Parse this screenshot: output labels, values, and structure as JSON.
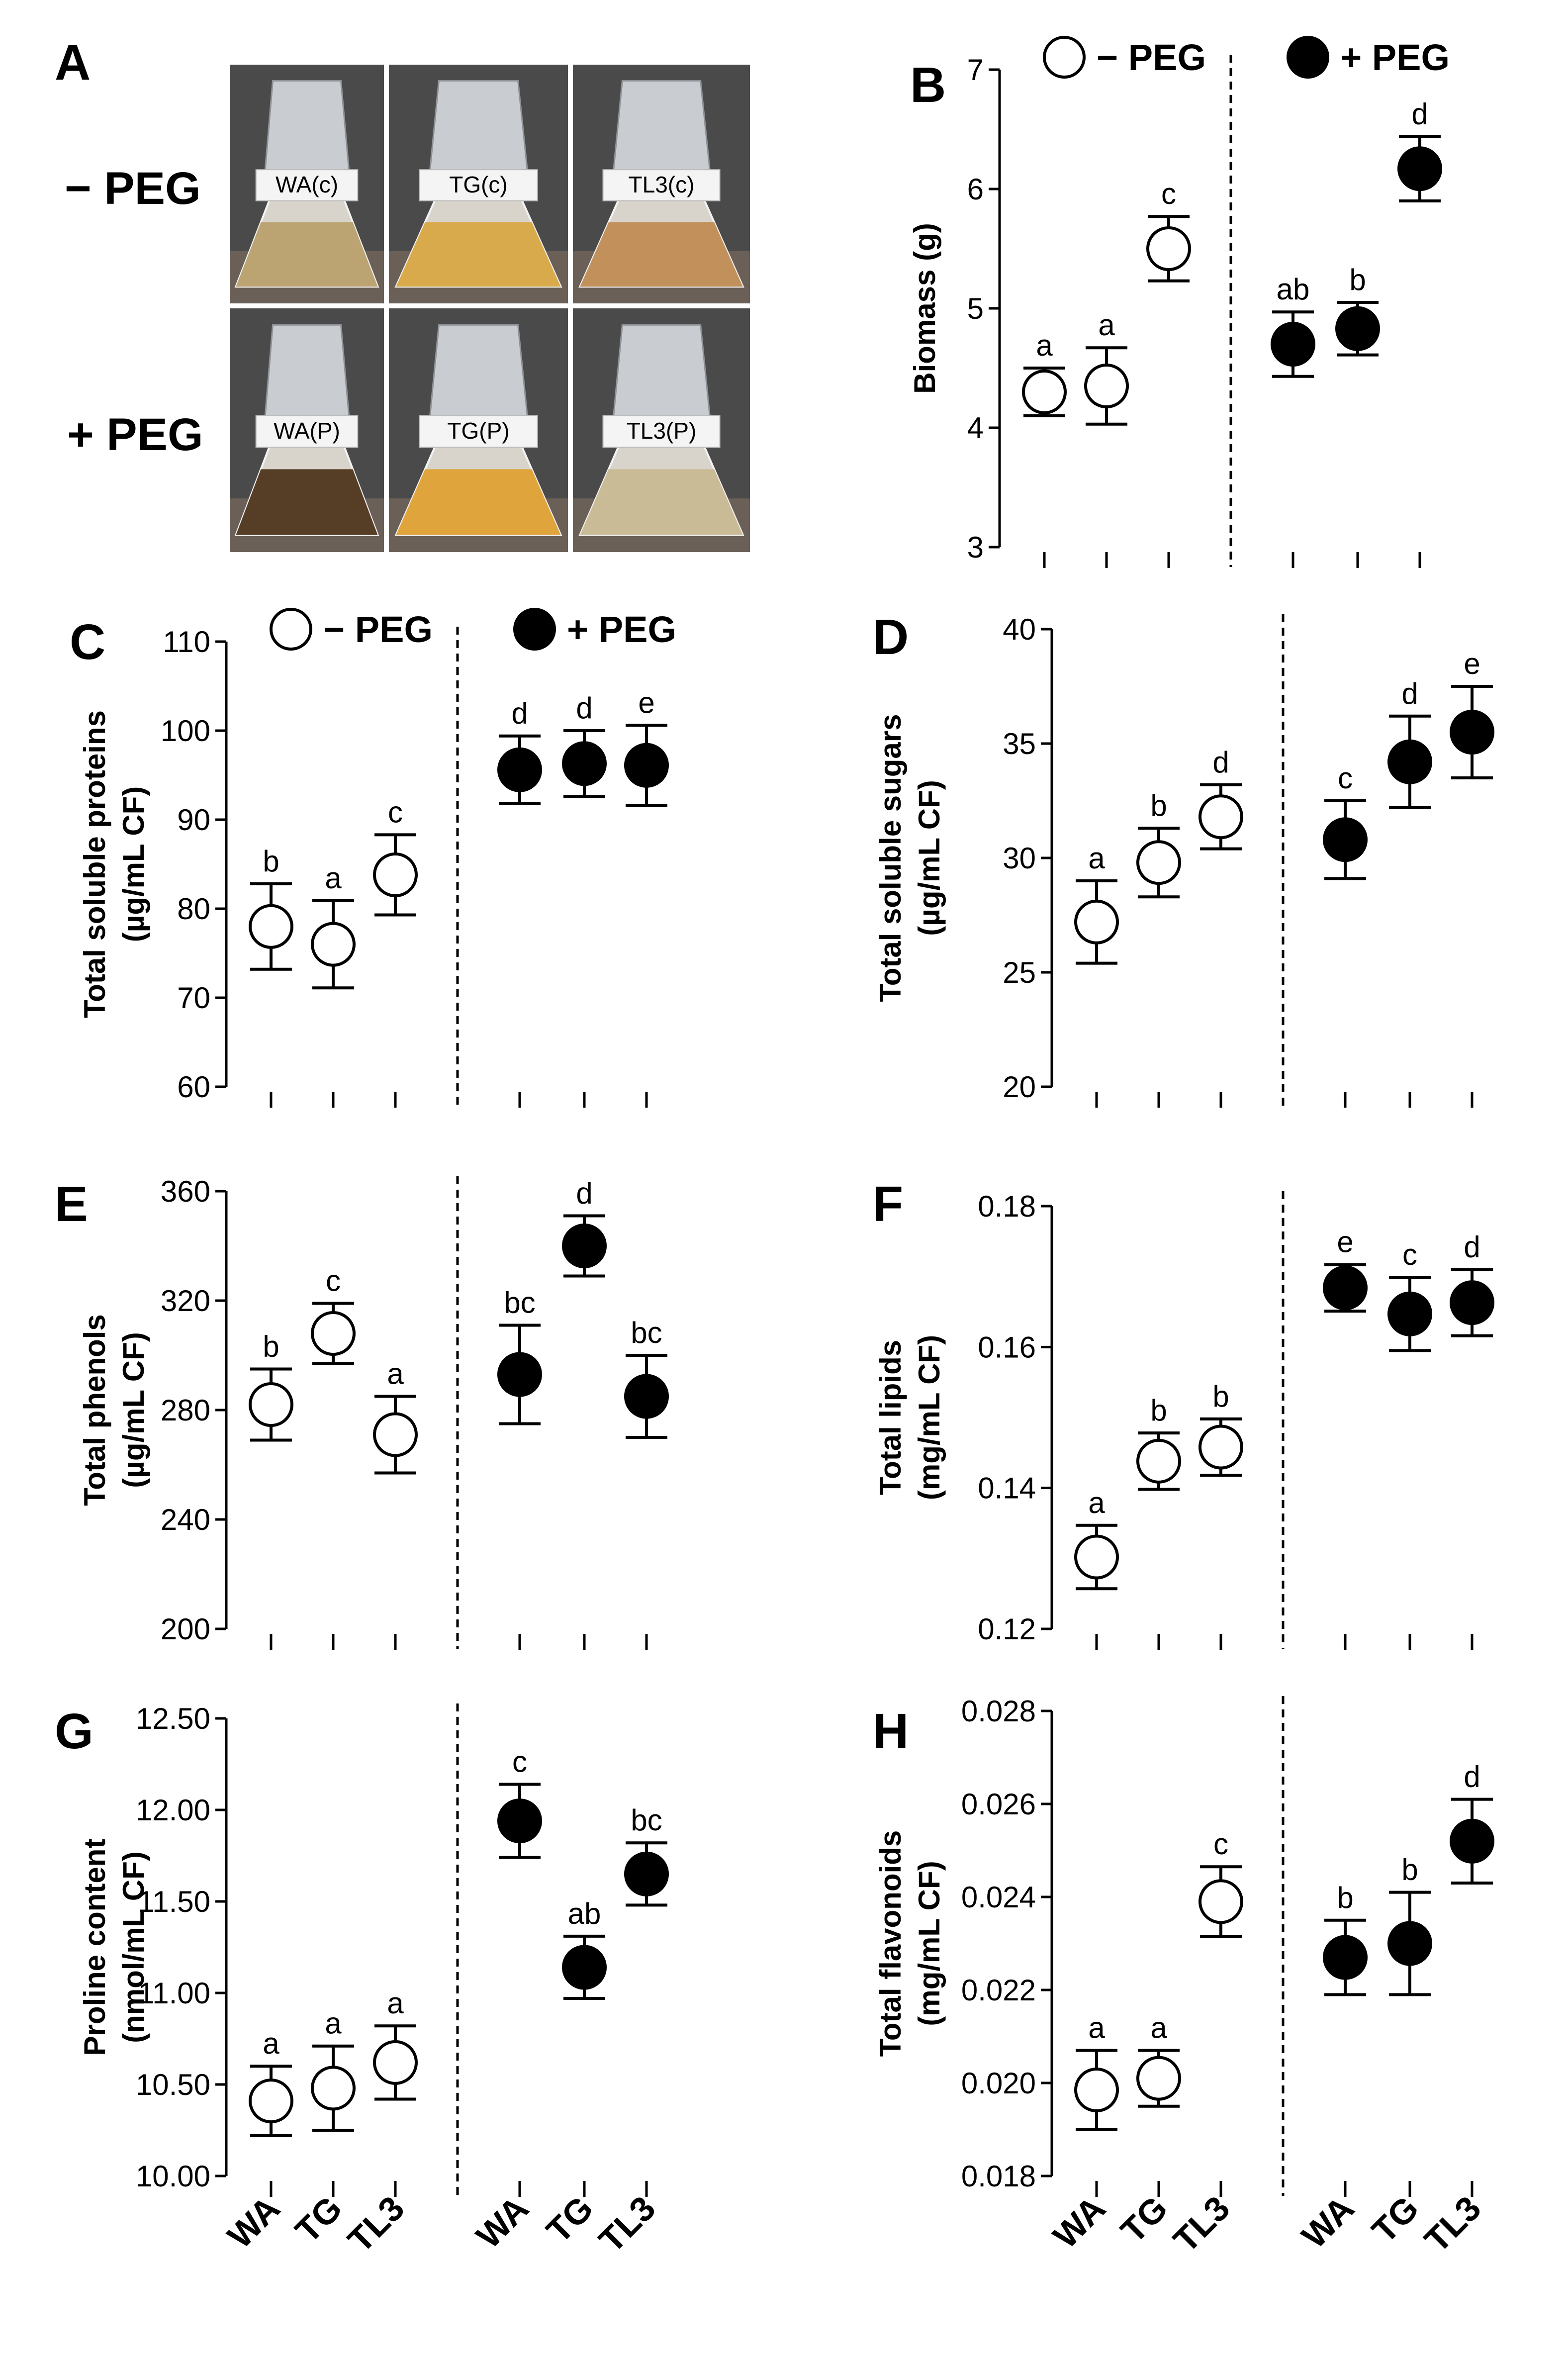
{
  "photo_panel": {
    "letter": "A",
    "row_labels": [
      "− PEG",
      "+ PEG"
    ],
    "flask_labels": [
      [
        "WA(c)",
        "TG(c)",
        "TL3(c)"
      ],
      [
        "WA(P)",
        "TG(P)",
        "TL3(P)"
      ]
    ],
    "flask_colors": [
      [
        "#b8a06a",
        "#d9a640",
        "#c08a50"
      ],
      [
        "#4a3018",
        "#e0a030",
        "#c8b890"
      ]
    ]
  },
  "legend": {
    "minus_peg": "− PEG",
    "plus_peg": "+ PEG"
  },
  "category_labels": [
    "WA",
    "TG",
    "TL3",
    "WA",
    "TG",
    "TL3"
  ],
  "chart_data": [
    {
      "panel": "B",
      "type": "scatter",
      "ylabel": "Biomass (g)",
      "ylim": [
        3,
        7
      ],
      "yticks": [
        "3",
        "4",
        "5",
        "6",
        "7"
      ],
      "categories": [
        "WA",
        "TG",
        "TL3",
        "WA",
        "TG",
        "TL3"
      ],
      "series": [
        {
          "name": "− PEG",
          "marker": "open",
          "values": [
            4.3,
            4.35,
            5.5
          ],
          "errors": [
            0.2,
            0.32,
            0.27
          ],
          "letters": [
            "a",
            "a",
            "c"
          ]
        },
        {
          "name": "+ PEG",
          "marker": "filled",
          "values": [
            4.7,
            4.83,
            6.17
          ],
          "errors": [
            0.27,
            0.22,
            0.27
          ],
          "letters": [
            "ab",
            "b",
            "d"
          ]
        }
      ]
    },
    {
      "panel": "C",
      "type": "scatter",
      "ylabel": [
        "Total soluble proteins",
        "(µg/mL CF)"
      ],
      "ylim": [
        60,
        110
      ],
      "yticks": [
        "60",
        "70",
        "80",
        "90",
        "100",
        "110"
      ],
      "categories": [
        "WA",
        "TG",
        "TL3",
        "WA",
        "TG",
        "TL3"
      ],
      "series": [
        {
          "name": "− PEG",
          "marker": "open",
          "values": [
            78,
            76,
            83.8
          ],
          "errors": [
            4.8,
            4.9,
            4.5
          ],
          "letters": [
            "b",
            "a",
            "c"
          ]
        },
        {
          "name": "+ PEG",
          "marker": "filled",
          "values": [
            95.6,
            96.3,
            96.1
          ],
          "errors": [
            3.8,
            3.7,
            4.5
          ],
          "letters": [
            "d",
            "d",
            "e"
          ]
        }
      ]
    },
    {
      "panel": "D",
      "type": "scatter",
      "ylabel": [
        "Total soluble sugars",
        "(µg/mL CF)"
      ],
      "ylim": [
        20,
        40
      ],
      "yticks": [
        "20",
        "25",
        "30",
        "35",
        "40"
      ],
      "categories": [
        "WA",
        "TG",
        "TL3",
        "WA",
        "TG",
        "TL3"
      ],
      "series": [
        {
          "name": "− PEG",
          "marker": "open",
          "values": [
            27.2,
            29.8,
            31.8
          ],
          "errors": [
            1.8,
            1.5,
            1.4
          ],
          "letters": [
            "a",
            "b",
            "d"
          ]
        },
        {
          "name": "+ PEG",
          "marker": "filled",
          "values": [
            30.8,
            34.2,
            35.5
          ],
          "errors": [
            1.7,
            2.0,
            2.0
          ],
          "letters": [
            "c",
            "d",
            "e"
          ]
        }
      ]
    },
    {
      "panel": "E",
      "type": "scatter",
      "ylabel": [
        "Total phenols",
        "(µg/mL CF)"
      ],
      "ylim": [
        200,
        360
      ],
      "yticks": [
        "200",
        "240",
        "280",
        "320",
        "360"
      ],
      "categories": [
        "WA",
        "TG",
        "TL3",
        "WA",
        "TG",
        "TL3"
      ],
      "series": [
        {
          "name": "− PEG",
          "marker": "open",
          "values": [
            282,
            308,
            271
          ],
          "errors": [
            13,
            11,
            14
          ],
          "letters": [
            "b",
            "c",
            "a"
          ]
        },
        {
          "name": "+ PEG",
          "marker": "filled",
          "values": [
            293,
            340,
            285
          ],
          "errors": [
            18,
            11,
            15
          ],
          "letters": [
            "bc",
            "d",
            "bc"
          ]
        }
      ]
    },
    {
      "panel": "F",
      "type": "scatter",
      "ylabel": [
        "Total lipids",
        "(mg/mL CF)"
      ],
      "ylim": [
        0.12,
        0.18
      ],
      "yticks": [
        "0.12",
        "0.14",
        "0.16",
        "0.18"
      ],
      "categories": [
        "WA",
        "TG",
        "TL3",
        "WA",
        "TG",
        "TL3"
      ],
      "series": [
        {
          "name": "− PEG",
          "marker": "open",
          "values": [
            0.1302,
            0.1438,
            0.1458
          ],
          "errors": [
            0.0045,
            0.004,
            0.004
          ],
          "letters": [
            "a",
            "b",
            "b"
          ]
        },
        {
          "name": "+ PEG",
          "marker": "filled",
          "values": [
            0.1684,
            0.1647,
            0.1663
          ],
          "errors": [
            0.0033,
            0.0052,
            0.0047
          ],
          "letters": [
            "e",
            "c",
            "d"
          ]
        }
      ]
    },
    {
      "panel": "G",
      "type": "scatter",
      "ylabel": [
        "Proline content",
        "(nmol/mL CF)"
      ],
      "ylim": [
        10.0,
        12.5
      ],
      "yticks": [
        "10.00",
        "10.50",
        "11.00",
        "11.50",
        "12.00",
        "12.50"
      ],
      "categories": [
        "WA",
        "TG",
        "TL3",
        "WA",
        "TG",
        "TL3"
      ],
      "series": [
        {
          "name": "− PEG",
          "marker": "open",
          "values": [
            10.41,
            10.48,
            10.62
          ],
          "errors": [
            0.19,
            0.23,
            0.2
          ],
          "letters": [
            "a",
            "a",
            "a"
          ]
        },
        {
          "name": "+ PEG",
          "marker": "filled",
          "values": [
            11.94,
            11.14,
            11.65
          ],
          "errors": [
            0.2,
            0.17,
            0.17
          ],
          "letters": [
            "c",
            "ab",
            "bc"
          ]
        }
      ]
    },
    {
      "panel": "H",
      "type": "scatter",
      "ylabel": [
        "Total flavonoids",
        "(mg/mL CF)"
      ],
      "ylim": [
        0.018,
        0.028
      ],
      "yticks": [
        "0.018",
        "0.020",
        "0.022",
        "0.024",
        "0.026",
        "0.028"
      ],
      "categories": [
        "WA",
        "TG",
        "TL3",
        "WA",
        "TG",
        "TL3"
      ],
      "series": [
        {
          "name": "− PEG",
          "marker": "open",
          "values": [
            0.01985,
            0.0201,
            0.0239
          ],
          "errors": [
            0.00085,
            0.0006,
            0.00075
          ],
          "letters": [
            "a",
            "a",
            "c"
          ]
        },
        {
          "name": "+ PEG",
          "marker": "filled",
          "values": [
            0.0227,
            0.023,
            0.0252
          ],
          "errors": [
            0.0008,
            0.0011,
            0.0009
          ],
          "letters": [
            "b",
            "b",
            "d"
          ]
        }
      ]
    }
  ]
}
